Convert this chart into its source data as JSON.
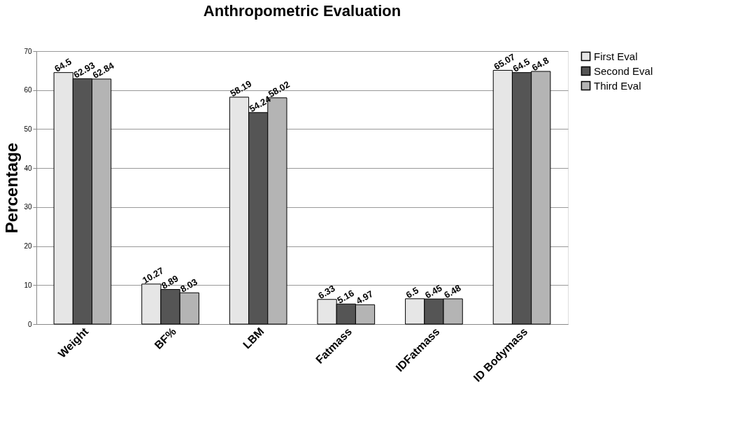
{
  "chart_data": {
    "type": "bar",
    "title": "Anthropometric Evaluation",
    "ylabel": "Percentage",
    "categories": [
      "Weight",
      "BF%",
      "LBM",
      "Fatmass",
      "IDFatmass",
      "ID Bodymass"
    ],
    "series": [
      {
        "name": "First Eval",
        "color": "#e6e6e6",
        "values": [
          64.5,
          10.27,
          58.19,
          6.33,
          6.5,
          65.07
        ]
      },
      {
        "name": "Second Eval",
        "color": "#555555",
        "values": [
          62.93,
          8.89,
          54.24,
          5.16,
          6.45,
          64.5
        ]
      },
      {
        "name": "Third Eval",
        "color": "#b4b4b4",
        "values": [
          62.84,
          8.03,
          58.02,
          4.97,
          6.48,
          64.8
        ]
      }
    ],
    "ylim": [
      0,
      70
    ],
    "yticks": [
      0,
      10,
      20,
      30,
      40,
      50,
      60,
      70
    ],
    "grid": "y",
    "legend": "right",
    "data_labels": true
  }
}
